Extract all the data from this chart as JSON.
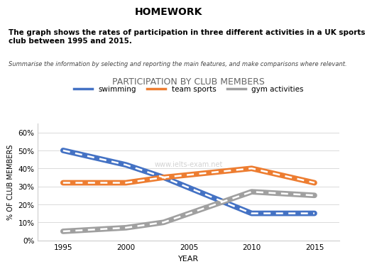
{
  "title": "PARTICIPATION BY CLUB MEMBERS",
  "header": "HOMEWORK",
  "bold_text": "The graph shows the rates of participation in three different activities in a UK sports\nclub between 1995 and 2015.",
  "italic_text": "Summarise the information by selecting and reporting the main features, and make comparisons where relevant.",
  "xlabel": "YEAR",
  "ylabel": "% OF CLUB MEMBERS",
  "years": [
    1995,
    2000,
    2003,
    2010,
    2015
  ],
  "swimming": [
    50,
    42,
    35,
    15,
    15
  ],
  "team_sports": [
    32,
    32,
    35,
    40,
    32
  ],
  "gym_activities": [
    5,
    7,
    10,
    27,
    25
  ],
  "swimming_color": "#4472C4",
  "team_sports_color": "#ED7D31",
  "gym_color": "#A0A0A0",
  "yticks": [
    0,
    10,
    20,
    30,
    40,
    50,
    60
  ],
  "ytick_labels": [
    "0%",
    "10%",
    "20%",
    "30%",
    "40%",
    "50%",
    "60%"
  ],
  "xticks": [
    1995,
    2000,
    2005,
    2010,
    2015
  ],
  "ylim": [
    0,
    65
  ],
  "xlim": [
    1993,
    2017
  ],
  "bg_color": "#FFFFFF",
  "plot_bg_color": "#FFFFFF",
  "legend_labels": [
    "swimming",
    "team sports",
    "gym activities"
  ],
  "watermark": "www.ielts-exam.net"
}
